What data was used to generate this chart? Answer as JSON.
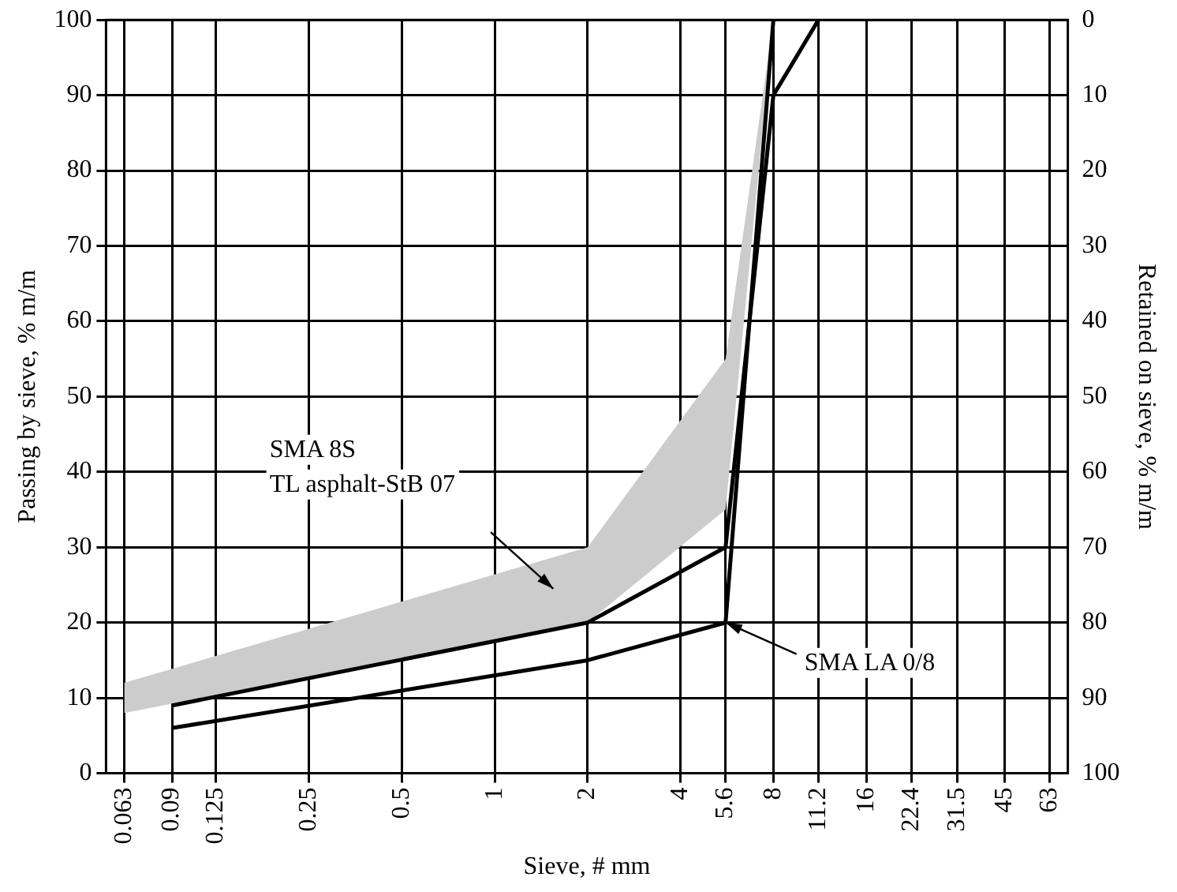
{
  "chart_data": {
    "type": "line",
    "xlabel": "Sieve, # mm",
    "ylabel": "Passing by sieve, % m/m",
    "y2label": "Retained on sieve, % m/m",
    "log": "x",
    "xlim": [
      0.055,
      72
    ],
    "xticks": [
      0.063,
      0.09,
      0.125,
      0.25,
      0.5,
      1,
      2,
      4,
      5.6,
      8,
      11.2,
      16,
      22.4,
      31.5,
      45,
      63
    ],
    "ylim": [
      0,
      100
    ],
    "yticks": [
      0,
      10,
      20,
      30,
      40,
      50,
      60,
      70,
      80,
      90,
      100
    ],
    "y2lim": [
      100,
      0
    ],
    "y2ticks": [
      0,
      10,
      20,
      30,
      40,
      50,
      60,
      70,
      80,
      90,
      100
    ],
    "grid": true,
    "legend": false,
    "marker": "none",
    "series": [
      {
        "type": "line",
        "color": "#cccccc",
        "x": [
          0.063,
          2,
          5.6,
          8
        ],
        "values": [
          null,
          null,
          null,
          null
        ],
        "lower": [
          8,
          20,
          35,
          100
        ],
        "upper": [
          12,
          30,
          55,
          100
        ]
      },
      {
        "type": "line",
        "color": "#000000",
        "x": [
          0.09,
          2,
          5.6,
          8,
          11.2
        ],
        "values": [
          9,
          20,
          30,
          90,
          100
        ]
      },
      {
        "type": "line",
        "color": "#000000",
        "x": [
          0.09,
          2,
          5.6,
          8
        ],
        "values": [
          6,
          15,
          20,
          100
        ]
      }
    ],
    "annotations": [
      "SMA 8S\nTL asphalt-StB 07",
      {
        "text": "SMA LA 0/8",
        "x": 5.6,
        "y": 20
      }
    ]
  }
}
